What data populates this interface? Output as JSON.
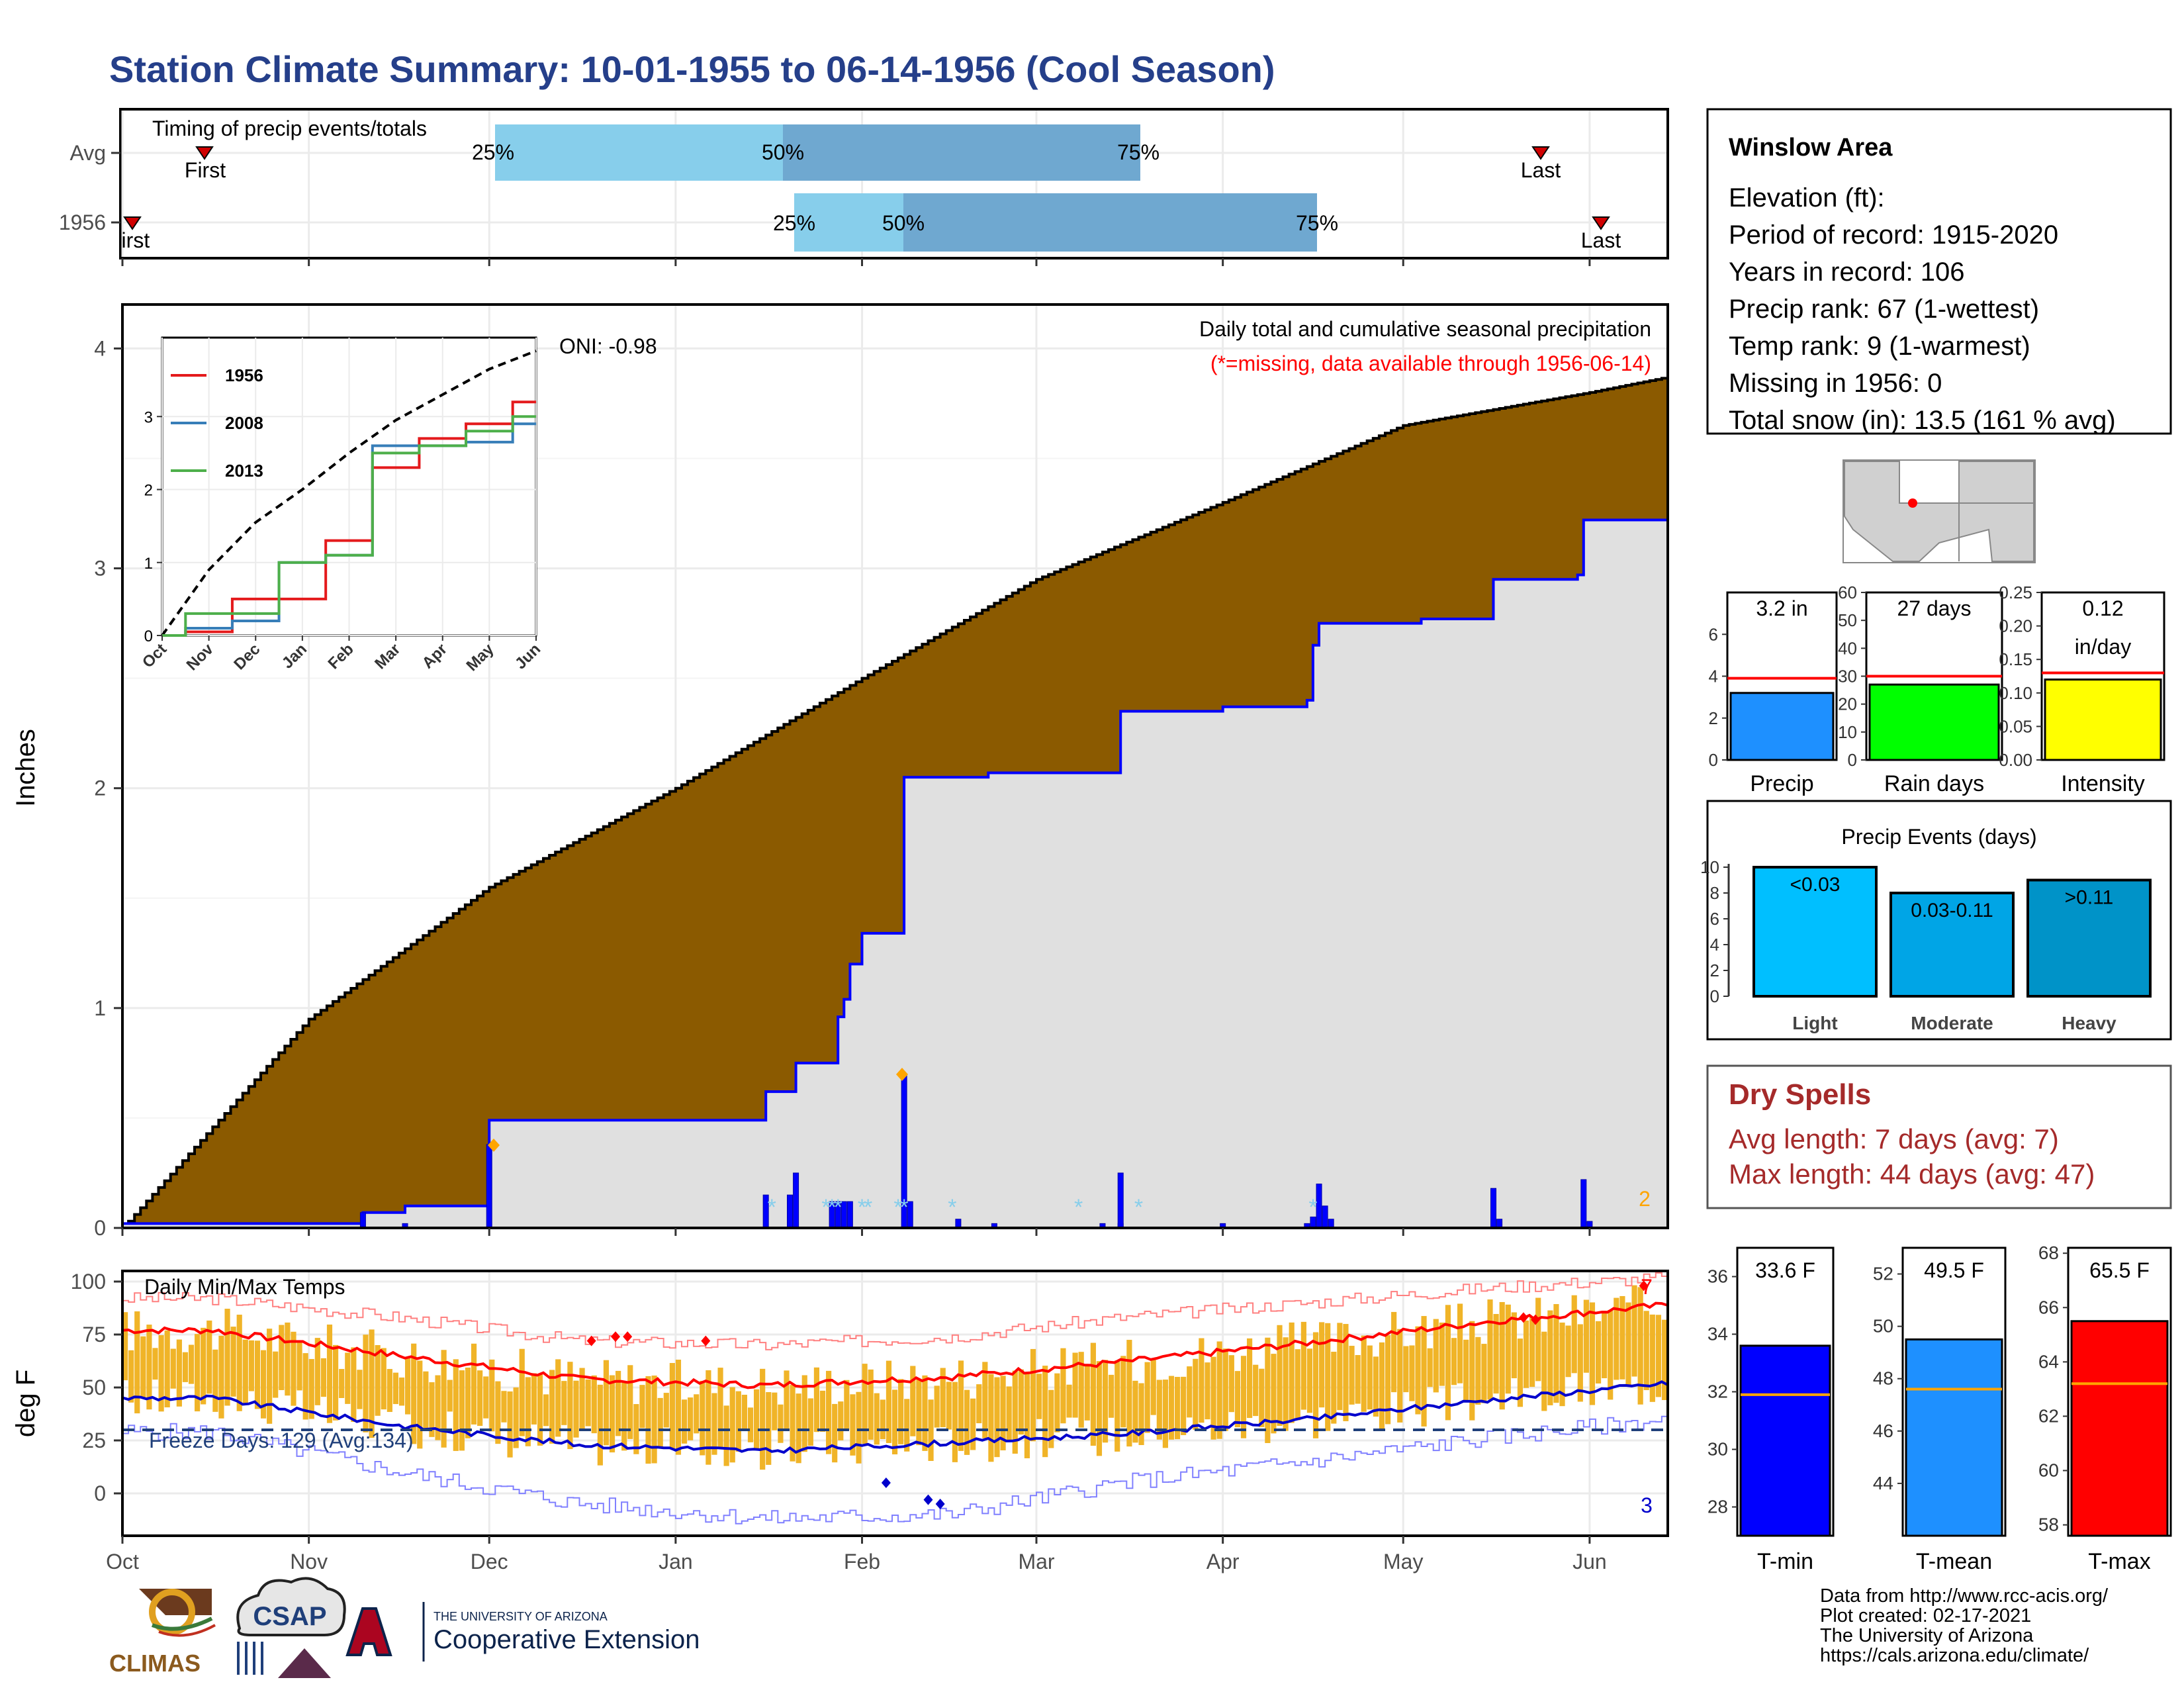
{
  "title": "Station Climate Summary: 10-01-1955 to 06-14-1956 (Cool Season)",
  "colors": {
    "title": "#253f8a",
    "brown": "#8b5a00",
    "lightgray": "#e0e0e0",
    "blue": "#0000ff",
    "red": "#ff0000",
    "green": "#00ff00",
    "yellow": "#ffff00",
    "orange": "#ffa500",
    "skyblue": "#87ceeb",
    "steelblue": "#6fa8d0",
    "dryspell": "#a52a2a",
    "bar_orange": "#f0b428"
  },
  "timing": {
    "title": "Timing of precip events/totals",
    "rows": [
      {
        "label": "Avg",
        "first": "First",
        "last": "Last",
        "p25": "25%",
        "p50": "50%",
        "p75": "75%"
      },
      {
        "label": "1956",
        "first": "First",
        "last": "Last",
        "p25": "25%",
        "p50": "50%",
        "p75": "75%"
      }
    ]
  },
  "precip_panel": {
    "ylabel": "Inches",
    "yticks": [
      "0",
      "1",
      "2",
      "3",
      "4"
    ],
    "oni": "ONI: -0.98",
    "caption": "Daily total and cumulative seasonal precipitation",
    "missing_note": "(*=missing, data available through 1956-06-14)",
    "count_label": "2"
  },
  "inset": {
    "legend": [
      {
        "name": "1956",
        "color": "#e41a1c"
      },
      {
        "name": "2008",
        "color": "#377eb8"
      },
      {
        "name": "2013",
        "color": "#4daf4a"
      }
    ],
    "xticks": [
      "Oct",
      "Nov",
      "Dec",
      "Jan",
      "Feb",
      "Mar",
      "Apr",
      "May",
      "Jun"
    ],
    "yticks": [
      "0",
      "1",
      "2",
      "3"
    ]
  },
  "temp_panel": {
    "ylabel": "deg F",
    "title": "Daily Min/Max Temps",
    "freeze": "Freeze Days: 129 (Avg:134)",
    "yticks": [
      "0",
      "25",
      "50",
      "75",
      "100"
    ],
    "xticks": [
      "Oct",
      "Nov",
      "Dec",
      "Jan",
      "Feb",
      "Mar",
      "Apr",
      "May",
      "Jun"
    ],
    "record_high_count": "7",
    "record_low_count": "3"
  },
  "info": {
    "station": "Winslow Area",
    "lines": [
      "Elevation (ft):",
      "Period of record: 1915-2020",
      "Years in record: 106",
      "Precip rank: 67 (1-wettest)",
      "Temp rank: 9 (1-warmest)",
      "Missing in 1956: 0",
      "Total snow (in): 13.5 (161 % avg)"
    ]
  },
  "mini_bars": [
    {
      "label": "Precip",
      "value_text": "3.2 in",
      "value": 3.2,
      "avg": 3.9,
      "max": 8,
      "ticks": [
        "0",
        "2",
        "4",
        "6"
      ],
      "color": "#1e90ff"
    },
    {
      "label": "Rain days",
      "value_text": "27 days",
      "value": 27,
      "avg": 30,
      "max": 60,
      "ticks": [
        "0",
        "10",
        "20",
        "30",
        "40",
        "50",
        "60"
      ],
      "color": "#00ff00"
    },
    {
      "label": "Intensity",
      "value_text": "0.12",
      "value_text2": "in/day",
      "value": 0.12,
      "avg": 0.13,
      "max": 0.25,
      "ticks": [
        "0.00",
        "0.05",
        "0.10",
        "0.15",
        "0.20",
        "0.25"
      ],
      "color": "#ffff00"
    }
  ],
  "events": {
    "title": "Precip Events (days)",
    "yticks": [
      "0",
      "2",
      "4",
      "6",
      "8",
      "10"
    ],
    "bars": [
      {
        "label": "Light",
        "range": "<0.03",
        "value": 10,
        "color": "#00bfff"
      },
      {
        "label": "Moderate",
        "range": "0.03-0.11",
        "value": 8,
        "color": "#00a5e6"
      },
      {
        "label": "Heavy",
        "range": ">0.11",
        "value": 9,
        "color": "#0093c8"
      }
    ]
  },
  "dry_spells": {
    "title": "Dry Spells",
    "avg": "Avg length: 7 days (avg: 7)",
    "max": "Max length: 44 days (avg: 47)"
  },
  "temp_bars": [
    {
      "label": "T-min",
      "value_text": "33.6 F",
      "value": 33.6,
      "avg": 31.9,
      "min": 27,
      "max": 37,
      "ticks": [
        "28",
        "30",
        "32",
        "34",
        "36"
      ],
      "color": "#0000ff"
    },
    {
      "label": "T-mean",
      "value_text": "49.5 F",
      "value": 49.5,
      "avg": 47.6,
      "min": 42,
      "max": 53,
      "ticks": [
        "44",
        "46",
        "48",
        "50",
        "52"
      ],
      "color": "#1e90ff"
    },
    {
      "label": "T-max",
      "value_text": "65.5 F",
      "value": 65.5,
      "avg": 63.2,
      "min": 57.6,
      "max": 68.2,
      "ticks": [
        "58",
        "60",
        "62",
        "64",
        "66",
        "68"
      ],
      "color": "#ff0000"
    }
  ],
  "footer": {
    "lines": [
      "Data from http://www.rcc-acis.org/",
      "Plot created: 02-17-2021",
      "The University of Arizona",
      "https://cals.arizona.edu/climate/"
    ],
    "climas": "CLIMAS",
    "csap": "CSAP",
    "ua_small": "THE UNIVERSITY OF ARIZONA",
    "ua_big": "Cooperative Extension"
  },
  "chart_data": [
    {
      "type": "line",
      "title": "Daily total and cumulative seasonal precipitation",
      "ylabel": "Inches",
      "ylim": [
        0,
        4.2
      ],
      "series": [
        {
          "name": "Avg",
          "x": [
            "Oct 1",
            "Nov 1",
            "Dec 1",
            "Jan 1",
            "Feb 1",
            "Mar 1",
            "Apr 1",
            "May 1",
            "Jun 1",
            "Jun 14"
          ],
          "values": [
            0.0,
            0.95,
            1.55,
            2.0,
            2.5,
            2.95,
            3.3,
            3.65,
            3.8,
            3.87
          ]
        },
        {
          "name": "1956",
          "x": [
            "Oct 1",
            "Nov 10",
            "Dec 1",
            "Jan 15",
            "Jan 21",
            "Feb 1",
            "Feb 7",
            "Feb 8",
            "Mar 15",
            "Apr 15",
            "Apr 17",
            "May 15",
            "May 30",
            "Jun 14"
          ],
          "values": [
            0.0,
            0.07,
            0.49,
            0.49,
            0.75,
            1.34,
            1.34,
            2.05,
            2.35,
            2.4,
            2.75,
            2.78,
            3.22,
            3.22
          ]
        }
      ]
    },
    {
      "type": "line",
      "xlim": [
        "Oct",
        "Jun"
      ],
      "ylim": [
        0,
        4
      ],
      "series": [
        {
          "name": "Avg",
          "values": [
            0,
            0.9,
            1.55,
            2.0,
            2.5,
            2.95,
            3.3,
            3.65,
            3.9
          ]
        },
        {
          "name": "1956",
          "values": [
            0,
            0.05,
            0.5,
            0.5,
            1.3,
            2.3,
            2.7,
            2.9,
            3.2
          ]
        },
        {
          "name": "2008",
          "values": [
            0,
            0.1,
            0.2,
            1.0,
            1.1,
            2.6,
            2.6,
            2.65,
            2.9
          ]
        },
        {
          "name": "2013",
          "values": [
            0,
            0.3,
            0.3,
            1.0,
            1.1,
            2.5,
            2.6,
            2.8,
            3.0
          ]
        }
      ]
    },
    {
      "type": "line",
      "title": "Daily Min/Max Temps",
      "ylabel": "deg F",
      "ylim": [
        -20,
        105
      ],
      "categories": [
        "Oct",
        "Nov",
        "Dec",
        "Jan",
        "Feb",
        "Mar",
        "Apr",
        "May",
        "Jun"
      ],
      "series": [
        {
          "name": "Avg max",
          "values": [
            77,
            65,
            54,
            51,
            55,
            62,
            71,
            81,
            89
          ]
        },
        {
          "name": "Avg min",
          "values": [
            45,
            32,
            23,
            20,
            24,
            28,
            35,
            44,
            52
          ]
        },
        {
          "name": "Record high",
          "values": [
            92,
            83,
            72,
            70,
            74,
            83,
            90,
            97,
            102
          ]
        },
        {
          "name": "Record low",
          "values": [
            29,
            10,
            -5,
            -12,
            -10,
            5,
            15,
            26,
            35
          ]
        }
      ]
    },
    {
      "type": "bar",
      "title": "Precip Events (days)",
      "categories": [
        "Light",
        "Moderate",
        "Heavy"
      ],
      "values": [
        10,
        8,
        9
      ]
    }
  ]
}
